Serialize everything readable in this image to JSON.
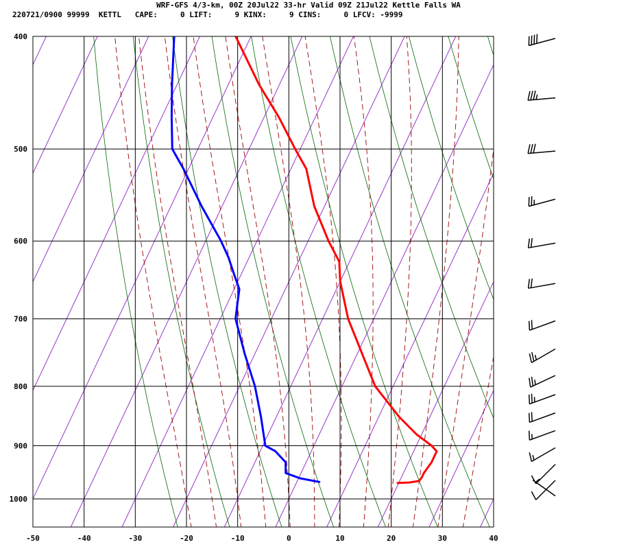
{
  "header": {
    "title": "WRF-GFS 4/3-km, 00Z 20Jul22 33-hr Valid 09Z 21Jul22 Kettle Falls WA",
    "subtitle": "220721/0900 99999  KETTL   CAPE:     0 LIFT:     9 KINX:     9 CINS:     0 LFCV: -9999"
  },
  "chart_data": {
    "type": "line",
    "title": "WRF-GFS 4/3-km, 00Z 20Jul22 33-hr Valid 09Z 21Jul22 Kettle Falls WA",
    "x_ticks": [
      "-50",
      "-40",
      "-30",
      "-20",
      "-10",
      "0",
      "10",
      "20",
      "30",
      "40"
    ],
    "y_ticks": [
      "400",
      "500",
      "600",
      "700",
      "800",
      "900",
      "1000"
    ],
    "x_range": [
      -50,
      40
    ],
    "y_range_hpa": [
      1040,
      400
    ],
    "y_scale": "log",
    "skew_deg_per_log": 46.5,
    "grid": true,
    "colors": {
      "temperature": "#ff0000",
      "dewpoint": "#0000ff",
      "isotherm": "#9933cc",
      "dry_adiabat": "#006600",
      "moist_adiabat": "#990000",
      "grid": "#000000",
      "wind_barb": "#000000"
    },
    "series": [
      {
        "key": "temperature",
        "points": [
          [
            969,
            19.8
          ],
          [
            968,
            22
          ],
          [
            965,
            23.8
          ],
          [
            958,
            24
          ],
          [
            950,
            24
          ],
          [
            930,
            24.5
          ],
          [
            910,
            24.5
          ],
          [
            900,
            23
          ],
          [
            880,
            19
          ],
          [
            850,
            14
          ],
          [
            800,
            6.5
          ],
          [
            700,
            -5
          ],
          [
            650,
            -10
          ],
          [
            625,
            -12
          ],
          [
            600,
            -16
          ],
          [
            560,
            -22
          ],
          [
            520,
            -27
          ],
          [
            500,
            -31
          ],
          [
            470,
            -37
          ],
          [
            440,
            -44
          ],
          [
            400,
            -53
          ]
        ]
      },
      {
        "key": "dewpoint",
        "points": [
          [
            967,
            4.4
          ],
          [
            960,
            0.3
          ],
          [
            950,
            -3
          ],
          [
            930,
            -4
          ],
          [
            910,
            -7
          ],
          [
            900,
            -9.5
          ],
          [
            850,
            -13
          ],
          [
            800,
            -17
          ],
          [
            750,
            -22
          ],
          [
            700,
            -27
          ],
          [
            680,
            -28
          ],
          [
            660,
            -29
          ],
          [
            640,
            -31.5
          ],
          [
            620,
            -34
          ],
          [
            600,
            -37
          ],
          [
            560,
            -44
          ],
          [
            520,
            -51
          ],
          [
            500,
            -55
          ],
          [
            470,
            -58
          ],
          [
            440,
            -61
          ],
          [
            400,
            -65
          ]
        ]
      }
    ],
    "isotherms_c": [
      -110,
      -100,
      -90,
      -80,
      -70,
      -60,
      -50,
      -40,
      -30,
      -20,
      -10,
      0,
      10,
      20,
      30,
      40
    ],
    "dry_adiabats_k": [
      250,
      260,
      270,
      280,
      290,
      300,
      310,
      320,
      330,
      340,
      350,
      360,
      370,
      380,
      390,
      400,
      410,
      420,
      430,
      440
    ],
    "moist_adiabats_c": [
      -20,
      -15,
      -10,
      -5,
      0,
      5,
      10,
      15,
      20,
      25,
      30,
      35
    ],
    "wind_barbs": [
      {
        "p": 400,
        "speed": 40,
        "dir": 255
      },
      {
        "p": 450,
        "speed": 35,
        "dir": 265
      },
      {
        "p": 500,
        "speed": 30,
        "dir": 265
      },
      {
        "p": 550,
        "speed": 25,
        "dir": 255
      },
      {
        "p": 600,
        "speed": 20,
        "dir": 260
      },
      {
        "p": 650,
        "speed": 20,
        "dir": 260
      },
      {
        "p": 700,
        "speed": 20,
        "dir": 250
      },
      {
        "p": 740,
        "speed": 25,
        "dir": 240
      },
      {
        "p": 780,
        "speed": 25,
        "dir": 245
      },
      {
        "p": 810,
        "speed": 25,
        "dir": 250
      },
      {
        "p": 840,
        "speed": 20,
        "dir": 250
      },
      {
        "p": 870,
        "speed": 15,
        "dir": 250
      },
      {
        "p": 900,
        "speed": 15,
        "dir": 240
      },
      {
        "p": 930,
        "speed": 10,
        "dir": 225
      },
      {
        "p": 960,
        "speed": 10,
        "dir": 225
      },
      {
        "p": 990,
        "speed": 5,
        "dir": 305
      }
    ]
  }
}
